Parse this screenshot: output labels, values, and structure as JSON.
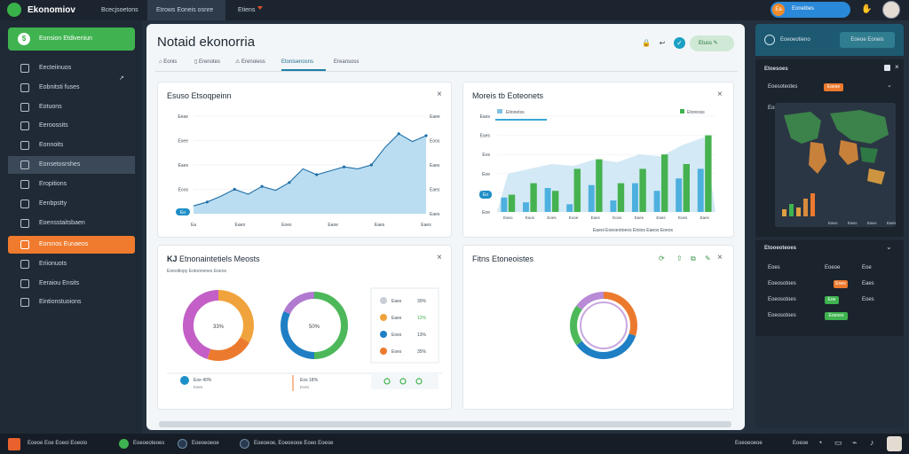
{
  "app": {
    "title": "Ekonomiov"
  },
  "topbar": {
    "menus": [
      "Bcecjsoetons",
      "Etrows Eoneis osnre",
      "Etiens"
    ],
    "user_label": "Eoneibes",
    "user_badge": "Ea"
  },
  "sidebar": {
    "top_label": "Eonsion Etdiveniun",
    "items": [
      {
        "label": "Eecteiinuos",
        "icon": "edit-icon"
      },
      {
        "label": "Eobnitsti fuses",
        "icon": "grid-icon"
      },
      {
        "label": "Eotuons",
        "icon": "list-icon"
      },
      {
        "label": "Eeroossits",
        "icon": "clock-icon"
      },
      {
        "label": "Eonnoits",
        "icon": "pen-icon"
      },
      {
        "label": "Eonsetosrshes",
        "icon": "folder-icon"
      },
      {
        "label": "Eropitions",
        "icon": "doc-icon"
      },
      {
        "label": "Eenbpstty",
        "icon": "chart-icon"
      },
      {
        "label": "Eoensstaitsbaen",
        "icon": "user-icon"
      },
      {
        "label": "Eorsnos Eunaeos",
        "icon": "calendar-icon"
      },
      {
        "label": "Eriionuots",
        "icon": "bell-icon"
      },
      {
        "label": "Eeraiou Ensits",
        "icon": "box-icon"
      },
      {
        "label": "Eintionstuoions",
        "icon": "settings-icon"
      }
    ]
  },
  "main": {
    "title": "Notaid ekonorria",
    "tabs": [
      "Eonis",
      "Erenotes",
      "Erenoiess",
      "Etonisenosns",
      "Ereansoss"
    ],
    "action_label": "Etuss"
  },
  "card_line": {
    "title": "Esuso Etsoqpeinn",
    "yticks": [
      "Eeae",
      "Eoee",
      "Eaes",
      "Eoos",
      "Eaes"
    ],
    "yticks_right": [
      "Eaee",
      "Eoos",
      "Eaes",
      "Eaes",
      "Eaes"
    ],
    "xticks": [
      "Ea",
      "Eaeo",
      "Eoes",
      "Eaoe",
      "Eaes",
      "Eaes"
    ],
    "chip": "Eo"
  },
  "card_bar": {
    "title": "Moreis tb Eoteonets",
    "legend": [
      "Eitonetss",
      "Etoreoss"
    ],
    "yticks": [
      "Eaes",
      "Eaes",
      "Eos",
      "Eoe",
      "Eaeo",
      "Eoe"
    ],
    "xticks": [
      "Eaeo",
      "Eaos",
      "Eoes",
      "Eooe",
      "Eaes",
      "Eoos",
      "Eaes",
      "Eaes",
      "Eoes",
      "Eaes"
    ],
    "xlabel": "Eaeoi Eoeoeotoeos Etoios Eaeos Eoeos",
    "chip": "Eo"
  },
  "card_donut": {
    "title": "Etnonaintetiels Meosts",
    "title_prefix": "KJ",
    "subtitle": "Eoeoitiopy Eotoonenes Eoeos",
    "donut1_center": "33%",
    "donut2_center": "50%",
    "legend": [
      {
        "label": "Eaes",
        "value": "30%",
        "color": "#c9cfd6"
      },
      {
        "label": "Eaes",
        "value": "12%",
        "color": "#f0a33c"
      },
      {
        "label": "Eoes",
        "value": "13%",
        "color": "#1f7fc4"
      },
      {
        "label": "Eoes",
        "value": "35%",
        "color": "#ec7a2e"
      }
    ],
    "footer": [
      {
        "label": "Eaes",
        "value": "Eoe 40%"
      },
      {
        "label": "Eoes",
        "value": "Eos 18%"
      }
    ]
  },
  "card_pie": {
    "title": "Fitns Etoneoistes"
  },
  "rpanel": {
    "head_label": "Eoeoeotieno",
    "head_button": "Eoeoe Eoneis",
    "sec1_title": "Etoesoes",
    "sec1_row_label": "Eoesoteotes",
    "sec1_badge": "Eaeae",
    "map_title": "Eoseso Eosess",
    "map_ticks": [
      "Eaeo",
      "Eaeo",
      "Eaeo",
      "Eaes"
    ],
    "sec2_title": "Etooeoteoes",
    "rows": [
      {
        "label": "Eoes",
        "v1": "Eoeoe",
        "v2": "Eoe",
        "badge": ""
      },
      {
        "label": "Eoeosotoes",
        "v1": "",
        "v2": "Eaes",
        "badge": "Eoes"
      },
      {
        "label": "Eoeosotoes",
        "v1": "",
        "v2": "Eoes",
        "badge": "Eoe"
      },
      {
        "label": "Eoeosotoes",
        "v1": "",
        "v2": "",
        "badge": "Eoeoes"
      }
    ]
  },
  "bottombar": {
    "items": [
      "Eoeoe Eoe Eoeoi Eoeoio",
      "Eoeoeoteoes",
      "Eoeoeoeoe",
      "Eoeoeoe, Eoeoeooe Eoeo Eoeoe"
    ],
    "right_items": [
      "Eoeoeoeoe",
      "Eoeoe"
    ]
  },
  "chart_data": [
    {
      "type": "area",
      "title": "Esuso Etsoqpeinn",
      "x": [
        1,
        2,
        3,
        4,
        5,
        6,
        7,
        8,
        9,
        10,
        11,
        12,
        13,
        14,
        15,
        16,
        17,
        18
      ],
      "series": [
        {
          "values": [
            8,
            12,
            18,
            25,
            20,
            28,
            24,
            32,
            46,
            40,
            44,
            48,
            46,
            50,
            68,
            82,
            74,
            80
          ]
        }
      ],
      "ylim": [
        0,
        100
      ],
      "grid": true
    },
    {
      "type": "bar",
      "title": "Moreis tb Eoteonets",
      "categories": [
        "Eaeo",
        "Eaos",
        "Eoes",
        "Eooe",
        "Eaes",
        "Eoos",
        "Eaes",
        "Eaes",
        "Eoes",
        "Eaes"
      ],
      "series": [
        {
          "name": "Eitonetss",
          "values": [
            15,
            10,
            25,
            8,
            28,
            12,
            30,
            22,
            35,
            45
          ]
        },
        {
          "name": "Etoreoss",
          "values": [
            18,
            30,
            22,
            45,
            55,
            30,
            45,
            60,
            50,
            80
          ]
        }
      ],
      "ylim": [
        0,
        100
      ]
    },
    {
      "type": "pie",
      "title": "Etnonaintetiels Meosts",
      "values": [
        33,
        22,
        45
      ],
      "colors": [
        "#f0a33c",
        "#ec7a2e",
        "#c35fc6"
      ]
    },
    {
      "type": "pie",
      "title": "Etnonaintetiels Meosts",
      "values": [
        50,
        32,
        18
      ],
      "colors": [
        "#4cb85a",
        "#1f7fc4",
        "#b07ad0"
      ]
    },
    {
      "type": "pie",
      "title": "Fitns Etoneoistes",
      "values": [
        30,
        35,
        20,
        15
      ],
      "colors": [
        "#ec7a2e",
        "#1f7fc4",
        "#4cb85a",
        "#b98ad6"
      ]
    }
  ]
}
